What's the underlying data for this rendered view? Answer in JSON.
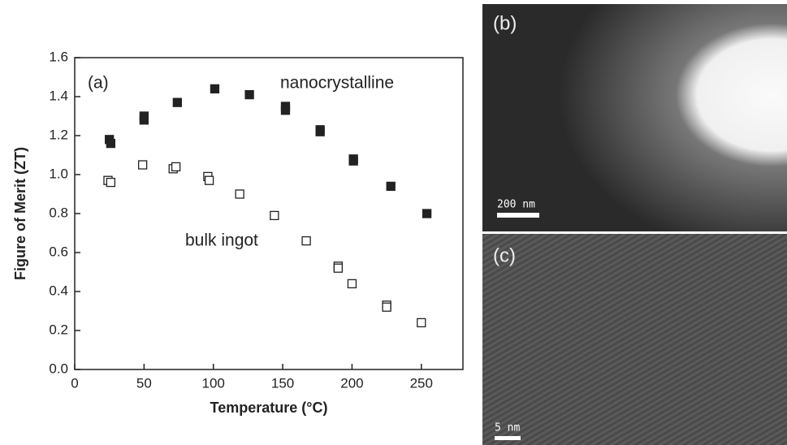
{
  "chart_data": {
    "type": "scatter",
    "panel_label": "(a)",
    "xlabel": "Temperature (°C)",
    "ylabel": "Figure of Merit (ZT)",
    "xlim": [
      0,
      280
    ],
    "ylim": [
      0,
      1.6
    ],
    "xticks": [
      0,
      50,
      100,
      150,
      200,
      250
    ],
    "yticks": [
      {
        "value": 0,
        "label": "0.0"
      },
      {
        "value": 0.2,
        "label": "0.2"
      },
      {
        "value": 0.4,
        "label": "0.4"
      },
      {
        "value": 0.6,
        "label": "0.6"
      },
      {
        "value": 0.8,
        "label": "0.8"
      },
      {
        "value": 1,
        "label": "1.0"
      },
      {
        "value": 1.2,
        "label": "1.2"
      },
      {
        "value": 1.4,
        "label": "1.4"
      },
      {
        "value": 1.6,
        "label": "1.6"
      }
    ],
    "series": [
      {
        "name": "nanocrystalline",
        "color": "#222222",
        "filled": true,
        "x": [
          25,
          26,
          50,
          50,
          74,
          101,
          126,
          152,
          152,
          177,
          177,
          201,
          201,
          228,
          254
        ],
        "values": [
          1.18,
          1.16,
          1.3,
          1.28,
          1.37,
          1.44,
          1.41,
          1.35,
          1.33,
          1.23,
          1.22,
          1.08,
          1.07,
          0.94,
          0.8
        ]
      },
      {
        "name": "bulk ingot",
        "color": "#222222",
        "filled": false,
        "x": [
          24,
          26,
          49,
          71,
          73,
          96,
          97,
          119,
          144,
          167,
          190,
          190,
          200,
          225,
          225,
          250
        ],
        "values": [
          0.97,
          0.96,
          1.05,
          1.03,
          1.04,
          0.99,
          0.97,
          0.9,
          0.79,
          0.66,
          0.53,
          0.52,
          0.44,
          0.33,
          0.32,
          0.24
        ]
      }
    ]
  },
  "panels": [
    {
      "label": "(b)",
      "scale_bar": "200 nm"
    },
    {
      "label": "(c)",
      "scale_bar": "5 nm"
    }
  ]
}
